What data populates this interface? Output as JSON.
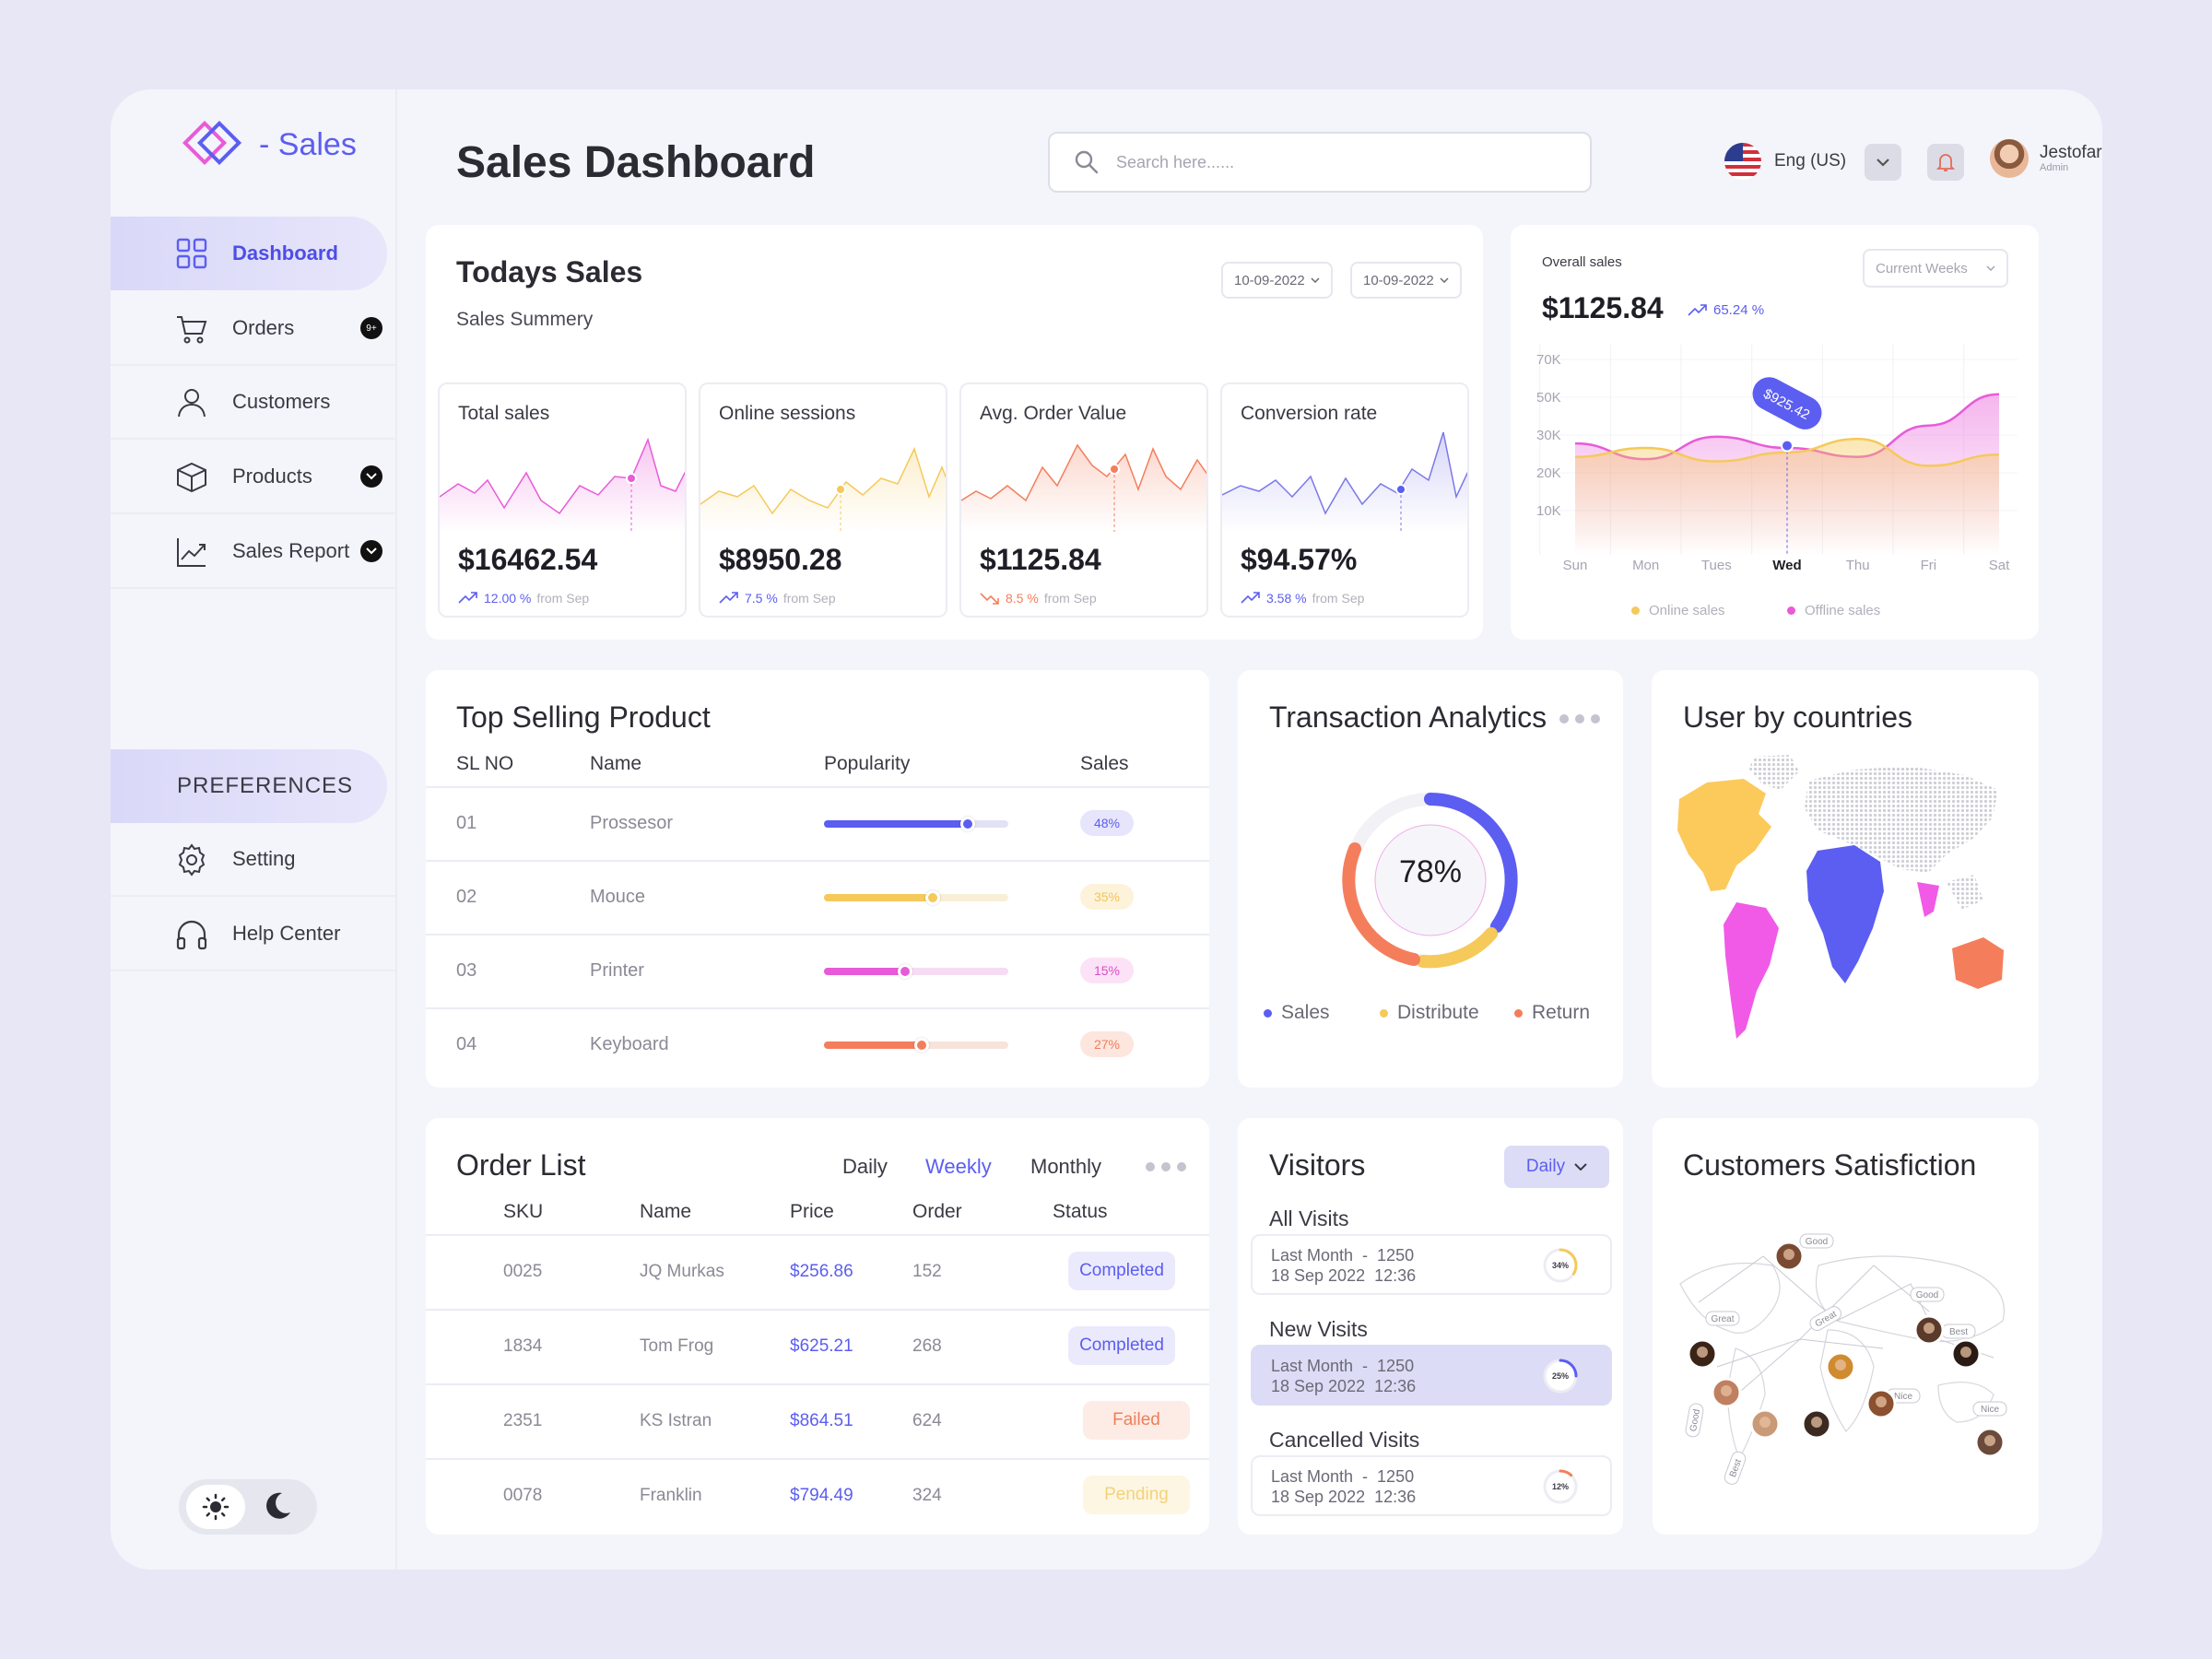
{
  "brand": {
    "name": "- Sales"
  },
  "sidebar": {
    "items": [
      {
        "label": "Dashboard",
        "badge": ""
      },
      {
        "label": "Orders",
        "badge": "9+"
      },
      {
        "label": "Customers",
        "badge": ""
      },
      {
        "label": "Products",
        "badge": ""
      },
      {
        "label": "Sales Report",
        "badge": ""
      }
    ],
    "preferences_label": "PREFERENCES",
    "pref_items": [
      {
        "label": "Setting"
      },
      {
        "label": "Help Center"
      }
    ]
  },
  "header": {
    "title": "Sales Dashboard",
    "search_placeholder": "Search here......",
    "language": "Eng (US)",
    "user_name": "Jestofar",
    "user_role": "Admin"
  },
  "todays_sales": {
    "title": "Todays Sales",
    "subtitle": "Sales Summery",
    "date_from": "10-09-2022",
    "date_to": "10-09-2022",
    "metrics": [
      {
        "label": "Total sales",
        "value": "$16462.54",
        "change": "12.00 %",
        "from": "from Sep",
        "color": "#e85bd8",
        "trend": "up"
      },
      {
        "label": "Online sessions",
        "value": "$8950.28",
        "change": "7.5 %",
        "from": "from Sep",
        "color": "#f5c95a",
        "trend": "up"
      },
      {
        "label": "Avg. Order Value",
        "value": "$1125.84",
        "change": "8.5 %",
        "from": "from Sep",
        "color": "#f47e5c",
        "trend": "down"
      },
      {
        "label": "Conversion rate",
        "value": "$94.57%",
        "change": "3.58 %",
        "from": "from Sep",
        "color": "#7b78e8",
        "trend": "up"
      }
    ]
  },
  "overall_sales": {
    "title": "Overall sales",
    "value": "$1125.84",
    "change": "65.24 %",
    "period": "Current Weeks",
    "tooltip": "$925.42",
    "legend": [
      "Online sales",
      "Offline sales"
    ]
  },
  "chart_data": {
    "type": "area",
    "categories": [
      "Sun",
      "Mon",
      "Tues",
      "Wed",
      "Thu",
      "Fri",
      "Sat"
    ],
    "highlight": "Wed",
    "y_ticks": [
      "70K",
      "50K",
      "30K",
      "20K",
      "10K"
    ],
    "series": [
      {
        "name": "Online sales",
        "color": "#f5c95a",
        "values": [
          24,
          28,
          22,
          26,
          32,
          20,
          25
        ]
      },
      {
        "name": "Offline sales",
        "color": "#e85bd8",
        "values": [
          30,
          23,
          33,
          28,
          24,
          38,
          52
        ]
      }
    ]
  },
  "top_selling": {
    "title": "Top Selling Product",
    "headers": [
      "SL NO",
      "Name",
      "Popularity",
      "Sales"
    ],
    "rows": [
      {
        "no": "01",
        "name": "Prossesor",
        "pct": "48%",
        "level": 0.78,
        "color": "#5b5ef0",
        "track": "#e2e2f4",
        "pill_bg": "#e6e5fb",
        "pill_fg": "#5b5ef0"
      },
      {
        "no": "02",
        "name": "Mouce",
        "pct": "35%",
        "level": 0.59,
        "color": "#f5c95a",
        "track": "#f8efd6",
        "pill_bg": "#fdf3da",
        "pill_fg": "#f1c55a"
      },
      {
        "no": "03",
        "name": "Printer",
        "pct": "15%",
        "level": 0.44,
        "color": "#e85bd8",
        "track": "#f6dcf3",
        "pill_bg": "#fbe2f7",
        "pill_fg": "#d94dc9"
      },
      {
        "no": "04",
        "name": "Keyboard",
        "pct": "27%",
        "level": 0.53,
        "color": "#f47e5c",
        "track": "#f8e3db",
        "pill_bg": "#fde6de",
        "pill_fg": "#ee7e5c"
      }
    ]
  },
  "transactions": {
    "title": "Transaction Analytics",
    "center": "78%",
    "legend": [
      {
        "label": "Sales",
        "color": "#5b5ef0"
      },
      {
        "label": "Distribute",
        "color": "#f5c95a"
      },
      {
        "label": "Return",
        "color": "#f47e5c"
      }
    ]
  },
  "countries": {
    "title": "User by countries"
  },
  "orders": {
    "title": "Order List",
    "tabs": [
      "Daily",
      "Weekly",
      "Monthly"
    ],
    "headers": [
      "SKU",
      "Name",
      "Price",
      "Order",
      "Status"
    ],
    "rows": [
      {
        "sku": "0025",
        "name": "JQ Murkas",
        "price": "$256.86",
        "order": "152",
        "status": "Completed",
        "bg": "#ebeafc",
        "fg": "#5b5ef0"
      },
      {
        "sku": "1834",
        "name": "Tom Frog",
        "price": "$625.21",
        "order": "268",
        "status": "Completed",
        "bg": "#ebeafc",
        "fg": "#5b5ef0"
      },
      {
        "sku": "2351",
        "name": "KS Istran",
        "price": "$864.51",
        "order": "624",
        "status": "Failed",
        "bg": "#fdece5",
        "fg": "#ee7e5c"
      },
      {
        "sku": "0078",
        "name": "Franklin",
        "price": "$794.49",
        "order": "324",
        "status": "Pending",
        "bg": "#fdf6e3",
        "fg": "#f3d27a"
      }
    ]
  },
  "visitors": {
    "title": "Visitors",
    "filter": "Daily",
    "sections": [
      {
        "title": "All Visits",
        "line1": "Last Month  -  1250",
        "line2": "18 Sep 2022  12:36",
        "pct": "34%",
        "level": 0.34,
        "color": "#f5c95a",
        "highlight": false
      },
      {
        "title": "New Visits",
        "line1": "Last Month  -  1250",
        "line2": "18 Sep 2022  12:36",
        "pct": "25%",
        "level": 0.25,
        "color": "#5b5ef0",
        "highlight": true
      },
      {
        "title": "Cancelled Visits",
        "line1": "Last Month  -  1250",
        "line2": "18 Sep 2022  12:36",
        "pct": "12%",
        "level": 0.12,
        "color": "#f47e5c",
        "highlight": false
      }
    ]
  },
  "satisfaction": {
    "title": "Customers Satisfiction",
    "tags": [
      "Good",
      "Good",
      "Great",
      "Great",
      "Best",
      "Nice",
      "Nice",
      "Good",
      "Best"
    ]
  }
}
